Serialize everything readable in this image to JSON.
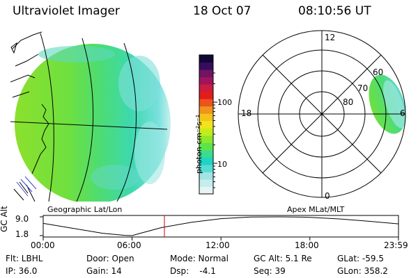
{
  "header": {
    "instrument": "Ultraviolet Imager",
    "date": "18 Oct 07",
    "time": "08:10:56 UT"
  },
  "panels": {
    "geographic_label": "Geographic Lat/Lon",
    "apex_label": "Apex  MLat/MLT"
  },
  "colorbar": {
    "unit_label": "photon cm⁻²s⁻¹",
    "ticks": [
      {
        "value": 10,
        "label": "10"
      },
      {
        "value": 100,
        "label": "100"
      }
    ],
    "colors": [
      "#e6f4f4",
      "#c6ecec",
      "#a0e4e4",
      "#55dcd4",
      "#1ed4c4",
      "#3cdc8c",
      "#5ce44c",
      "#8ce82c",
      "#c4ec1c",
      "#f0e41c",
      "#f4c41c",
      "#f0941c",
      "#ec541c",
      "#e41c1c",
      "#cc1c40",
      "#a0145c",
      "#701464",
      "#380c5c",
      "#100838"
    ]
  },
  "polar": {
    "ring_labels": [
      "80",
      "70",
      "60"
    ],
    "mlt_labels": {
      "top": "12",
      "bottom": "0",
      "left": "18",
      "right": "6"
    }
  },
  "chart_data": {
    "type": "line",
    "title": "GC Alt",
    "ylabel": "GC Alt",
    "ytick_labels": [
      "9.0",
      "1.8"
    ],
    "ylim": [
      1.8,
      9.0
    ],
    "xlim_hours": [
      0,
      23.983
    ],
    "xtick_labels": [
      "00:00",
      "06:00",
      "12:00",
      "18:00",
      "23:59"
    ],
    "x_hours": [
      0,
      2,
      4,
      5.5,
      6,
      6.5,
      8,
      10,
      12,
      14,
      16,
      17.5,
      18,
      20,
      22,
      23.983
    ],
    "y_re": [
      6.5,
      4.6,
      2.7,
      1.9,
      1.8,
      2.6,
      4.9,
      6.9,
      8.3,
      8.95,
      9.0,
      8.9,
      8.8,
      8.2,
      7.3,
      6.3
    ],
    "current_time_hours": 8.182,
    "marker_color": "#cc0000"
  },
  "status": {
    "flt": "Flt: LBHL",
    "door": "Door: Open",
    "mode": "Mode: Normal",
    "gc_alt": "GC Alt: 5.1 Re",
    "glat": "GLat: -59.5",
    "ip": "IP: 36.0",
    "gain": "Gain: 14",
    "dsp": "Dsp:    -4.1",
    "seq": "Seq: 39",
    "glon": "GLon: 358.2"
  }
}
